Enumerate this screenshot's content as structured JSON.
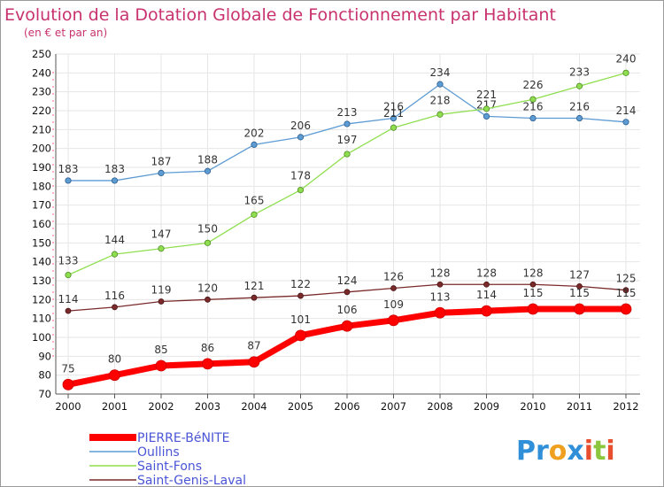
{
  "chart_data": {
    "type": "line",
    "title": "Evolution de la Dotation Globale de Fonctionnement par Habitant",
    "subtitle": "(en € et par an)",
    "xlabel": "",
    "ylabel": "",
    "categories": [
      "2000",
      "2001",
      "2002",
      "2003",
      "2004",
      "2005",
      "2006",
      "2007",
      "2008",
      "2009",
      "2010",
      "2011",
      "2012"
    ],
    "ylim": [
      70,
      250
    ],
    "yticks": [
      70,
      80,
      90,
      100,
      110,
      120,
      130,
      140,
      150,
      160,
      170,
      180,
      190,
      200,
      210,
      220,
      230,
      240,
      250
    ],
    "grid": true,
    "legend_position": "bottom-left",
    "series": [
      {
        "name": "Oullins",
        "color": "#5d9bd3",
        "values": [
          183,
          183,
          187,
          188,
          202,
          206,
          213,
          216,
          234,
          217,
          216,
          216,
          214
        ]
      },
      {
        "name": "Saint-Fons",
        "color": "#8fde4f",
        "values": [
          133,
          144,
          147,
          150,
          165,
          178,
          197,
          211,
          218,
          221,
          226,
          233,
          240
        ]
      },
      {
        "name": "Saint-Genis-Laval",
        "color": "#7a2a2a",
        "values": [
          114,
          116,
          119,
          120,
          121,
          122,
          124,
          126,
          128,
          128,
          128,
          127,
          125
        ]
      },
      {
        "name": "PIERRE-BéNITE",
        "color": "#ff0000",
        "values": [
          75,
          80,
          85,
          86,
          87,
          101,
          106,
          109,
          113,
          114,
          115,
          115,
          115
        ]
      }
    ],
    "legend": [
      "PIERRE-BéNITE",
      "Oullins",
      "Saint-Fons",
      "Saint-Genis-Laval"
    ],
    "watermark": "Proxiti"
  }
}
